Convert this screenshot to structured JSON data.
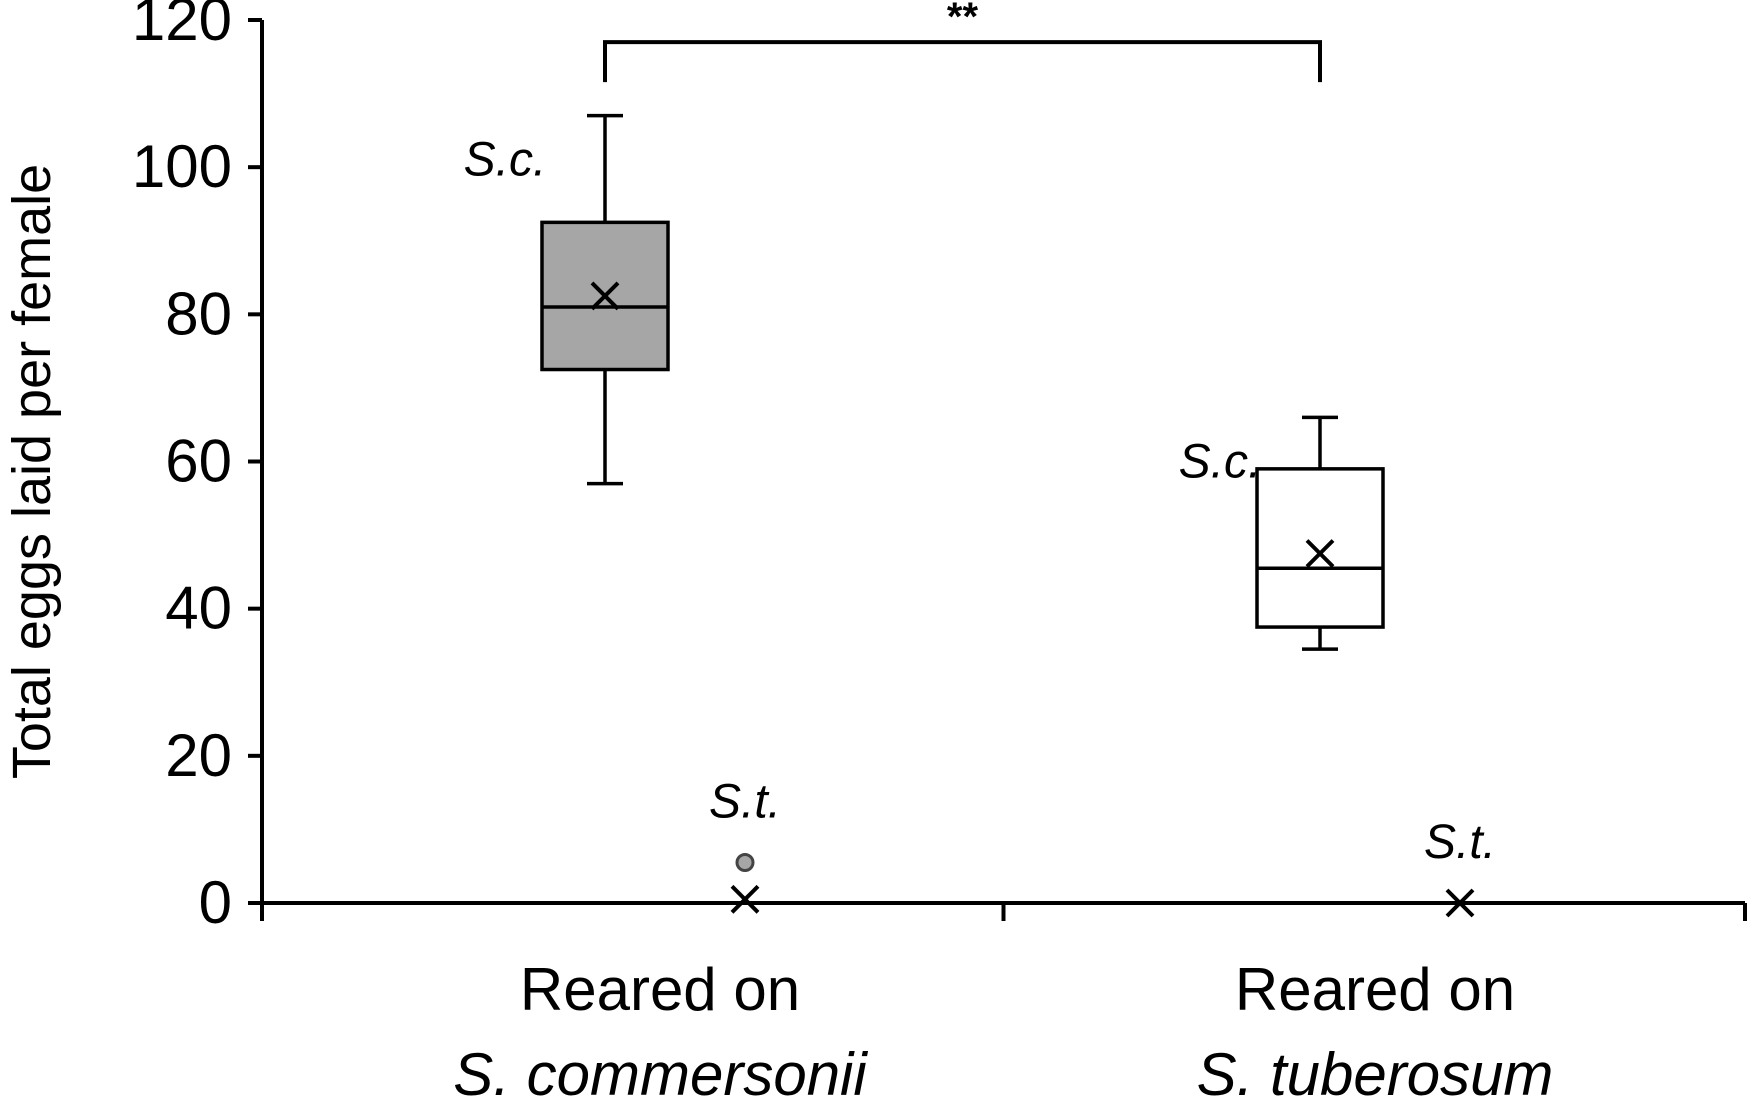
{
  "chart_data": {
    "type": "box",
    "ylabel": "Total eggs laid per female",
    "ylim": [
      0,
      120
    ],
    "yticks": [
      0,
      20,
      40,
      60,
      80,
      100,
      120
    ],
    "groups": [
      {
        "label_line1": "Reared on",
        "label_line2": "S. commersonii",
        "boxes": [
          {
            "label": "S.c.",
            "min": 57,
            "q1": 72.5,
            "median": 81,
            "q3": 92.5,
            "max": 107,
            "mean": 82.5,
            "outliers": [],
            "fill": "#a6a6a6"
          },
          {
            "label": "S.t.",
            "min": 0,
            "q1": 0,
            "median": 0,
            "q3": 0,
            "max": 0,
            "mean": 0.5,
            "outliers": [
              5.5
            ],
            "fill": "#ffffff"
          }
        ]
      },
      {
        "label_line1": "Reared on",
        "label_line2": "S. tuberosum",
        "boxes": [
          {
            "label": "S.c.",
            "min": 34.5,
            "q1": 37.5,
            "median": 45.5,
            "q3": 59,
            "max": 66,
            "mean": 47.5,
            "outliers": [],
            "fill": "#ffffff"
          },
          {
            "label": "S.t.",
            "min": 0,
            "q1": 0,
            "median": 0,
            "q3": 0,
            "max": 0,
            "mean": 0,
            "outliers": [],
            "fill": "#ffffff"
          }
        ]
      }
    ],
    "significance": {
      "text": "**",
      "from_group": 0,
      "to_group": 1,
      "y": 117
    }
  }
}
